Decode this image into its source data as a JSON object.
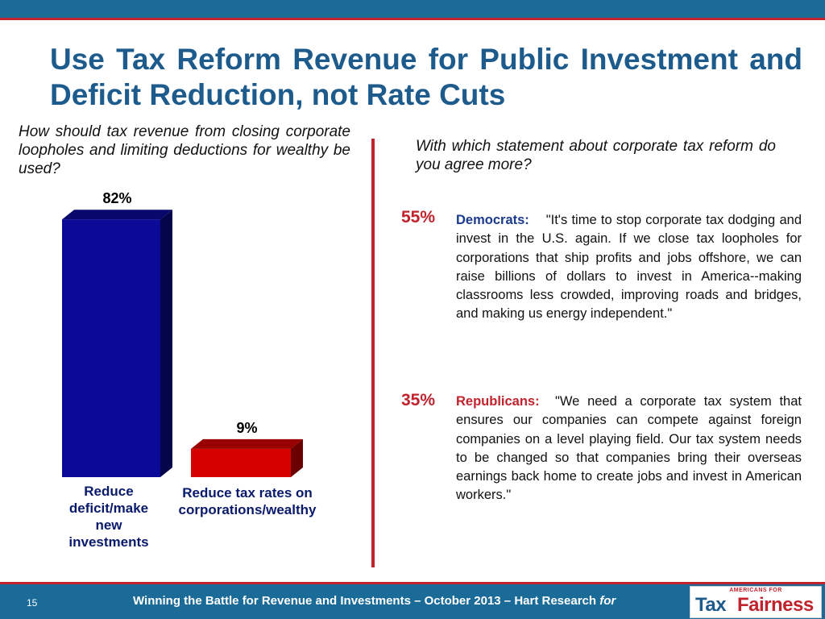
{
  "title": "Use Tax Reform Revenue for Public Investment and Deficit Reduction, not Rate Cuts",
  "left_question": "How should tax revenue from closing corporate loopholes and limiting deductions for wealthy be used?",
  "right_question": "With which statement about corporate tax reform do you agree more?",
  "chart_data": {
    "type": "bar",
    "categories": [
      "Reduce deficit/make new investments",
      "Reduce tax rates on corporations/wealthy"
    ],
    "values": [
      82,
      9
    ],
    "data_labels": [
      "82%",
      "9%"
    ],
    "colors": [
      "#0a0a96",
      "#d40000"
    ],
    "ylim": [
      0,
      100
    ]
  },
  "statements": [
    {
      "pct": "55%",
      "party": "Democrats:",
      "text": "\"It's time to stop corporate tax dodging and invest in the U.S. again. If we close tax loopholes for corporations that ship profits and jobs offshore, we can raise billions of dollars to invest in America--making classrooms less crowded, improving roads and bridges, and making us energy independent.\""
    },
    {
      "pct": "35%",
      "party": "Republicans:",
      "text": "\"We need a corporate tax system that ensures our companies can compete against foreign companies on a level playing field. Our tax system needs to be changed so that companies bring their overseas earnings back home to create jobs and invest in American workers.\""
    }
  ],
  "footer": {
    "page": "15",
    "text": "Winning the Battle for Revenue and Investments – October 2013 – Hart Research ",
    "for": "for"
  },
  "logo": {
    "small": "AMERICANS FOR",
    "tax": "Tax",
    "fairness": "Fairness"
  },
  "colors": {
    "title": "#1d5b8c",
    "accent_red": "#c0232c",
    "bar_blue": "#1a6b98"
  }
}
